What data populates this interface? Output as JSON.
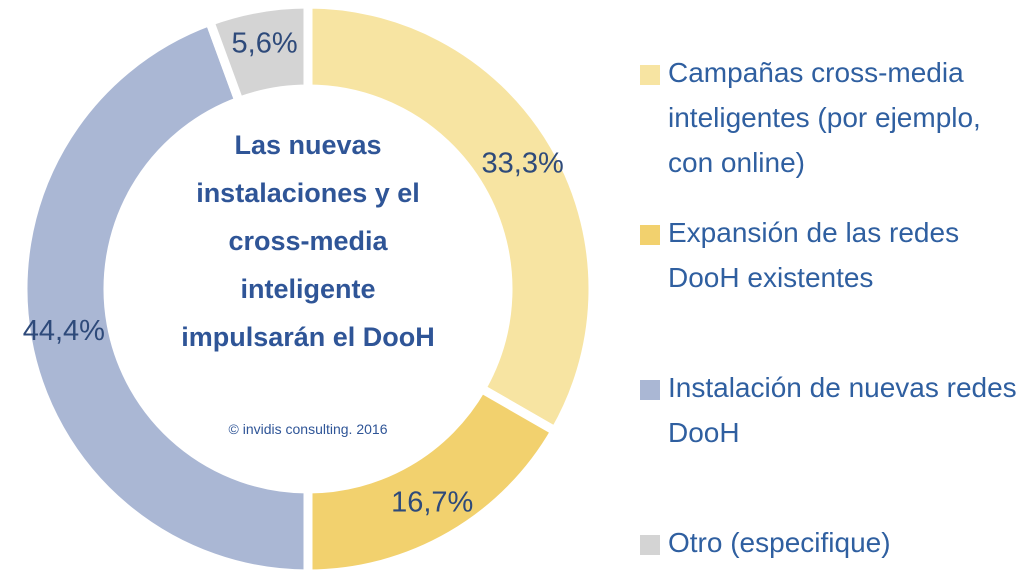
{
  "chart_data": {
    "type": "pie",
    "donut": true,
    "title": "Las nuevas instalaciones y el cross-media inteligente impulsarán el DooH",
    "subtitle": "© invidis consulting. 2016",
    "categories": [
      "Campañas cross-media inteligentes (por ejemplo, con online)",
      "Expansión de las redes DooH existentes",
      "Instalación de nuevas redes DooH",
      "Otro (especifique)"
    ],
    "values": [
      33.3,
      16.7,
      44.4,
      5.6
    ],
    "value_labels": [
      "33,3%",
      "16,7%",
      "44,4%",
      "5,6%"
    ],
    "colors": [
      "#f7e4a2",
      "#f2d16e",
      "#aab7d4",
      "#d4d4d4"
    ],
    "legend": "right"
  }
}
